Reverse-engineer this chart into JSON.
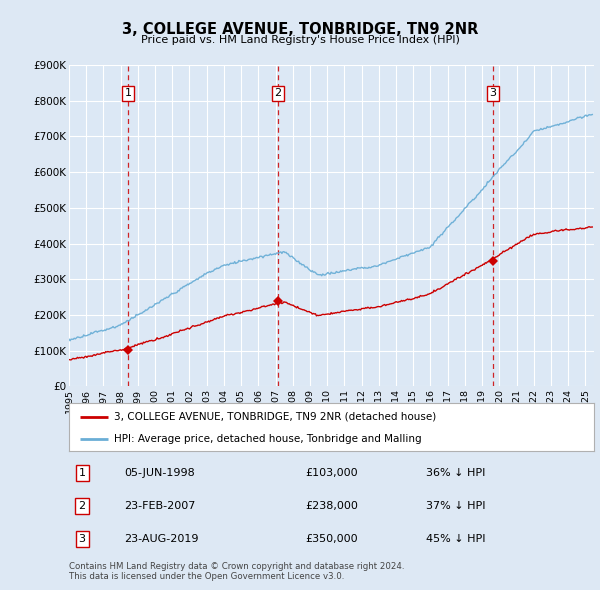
{
  "title": "3, COLLEGE AVENUE, TONBRIDGE, TN9 2NR",
  "subtitle": "Price paid vs. HM Land Registry's House Price Index (HPI)",
  "bg_color": "#dde8f4",
  "plot_bg_color": "#dce8f5",
  "grid_color": "#ffffff",
  "hpi_color": "#6aaed6",
  "price_color": "#cc0000",
  "vline_color": "#cc0000",
  "ylim": [
    0,
    900000
  ],
  "yticks": [
    0,
    100000,
    200000,
    300000,
    400000,
    500000,
    600000,
    700000,
    800000,
    900000
  ],
  "ytick_labels": [
    "£0",
    "£100K",
    "£200K",
    "£300K",
    "£400K",
    "£500K",
    "£600K",
    "£700K",
    "£800K",
    "£900K"
  ],
  "sales": [
    {
      "date_num": 1998.42,
      "price": 103000,
      "label": "1"
    },
    {
      "date_num": 2007.14,
      "price": 238000,
      "label": "2"
    },
    {
      "date_num": 2019.64,
      "price": 350000,
      "label": "3"
    }
  ],
  "legend_label_price": "3, COLLEGE AVENUE, TONBRIDGE, TN9 2NR (detached house)",
  "legend_label_hpi": "HPI: Average price, detached house, Tonbridge and Malling",
  "footer": "Contains HM Land Registry data © Crown copyright and database right 2024.\nThis data is licensed under the Open Government Licence v3.0.",
  "table_rows": [
    {
      "num": "1",
      "date": "05-JUN-1998",
      "price": "£103,000",
      "pct": "36% ↓ HPI"
    },
    {
      "num": "2",
      "date": "23-FEB-2007",
      "price": "£238,000",
      "pct": "37% ↓ HPI"
    },
    {
      "num": "3",
      "date": "23-AUG-2019",
      "price": "£350,000",
      "pct": "45% ↓ HPI"
    }
  ]
}
